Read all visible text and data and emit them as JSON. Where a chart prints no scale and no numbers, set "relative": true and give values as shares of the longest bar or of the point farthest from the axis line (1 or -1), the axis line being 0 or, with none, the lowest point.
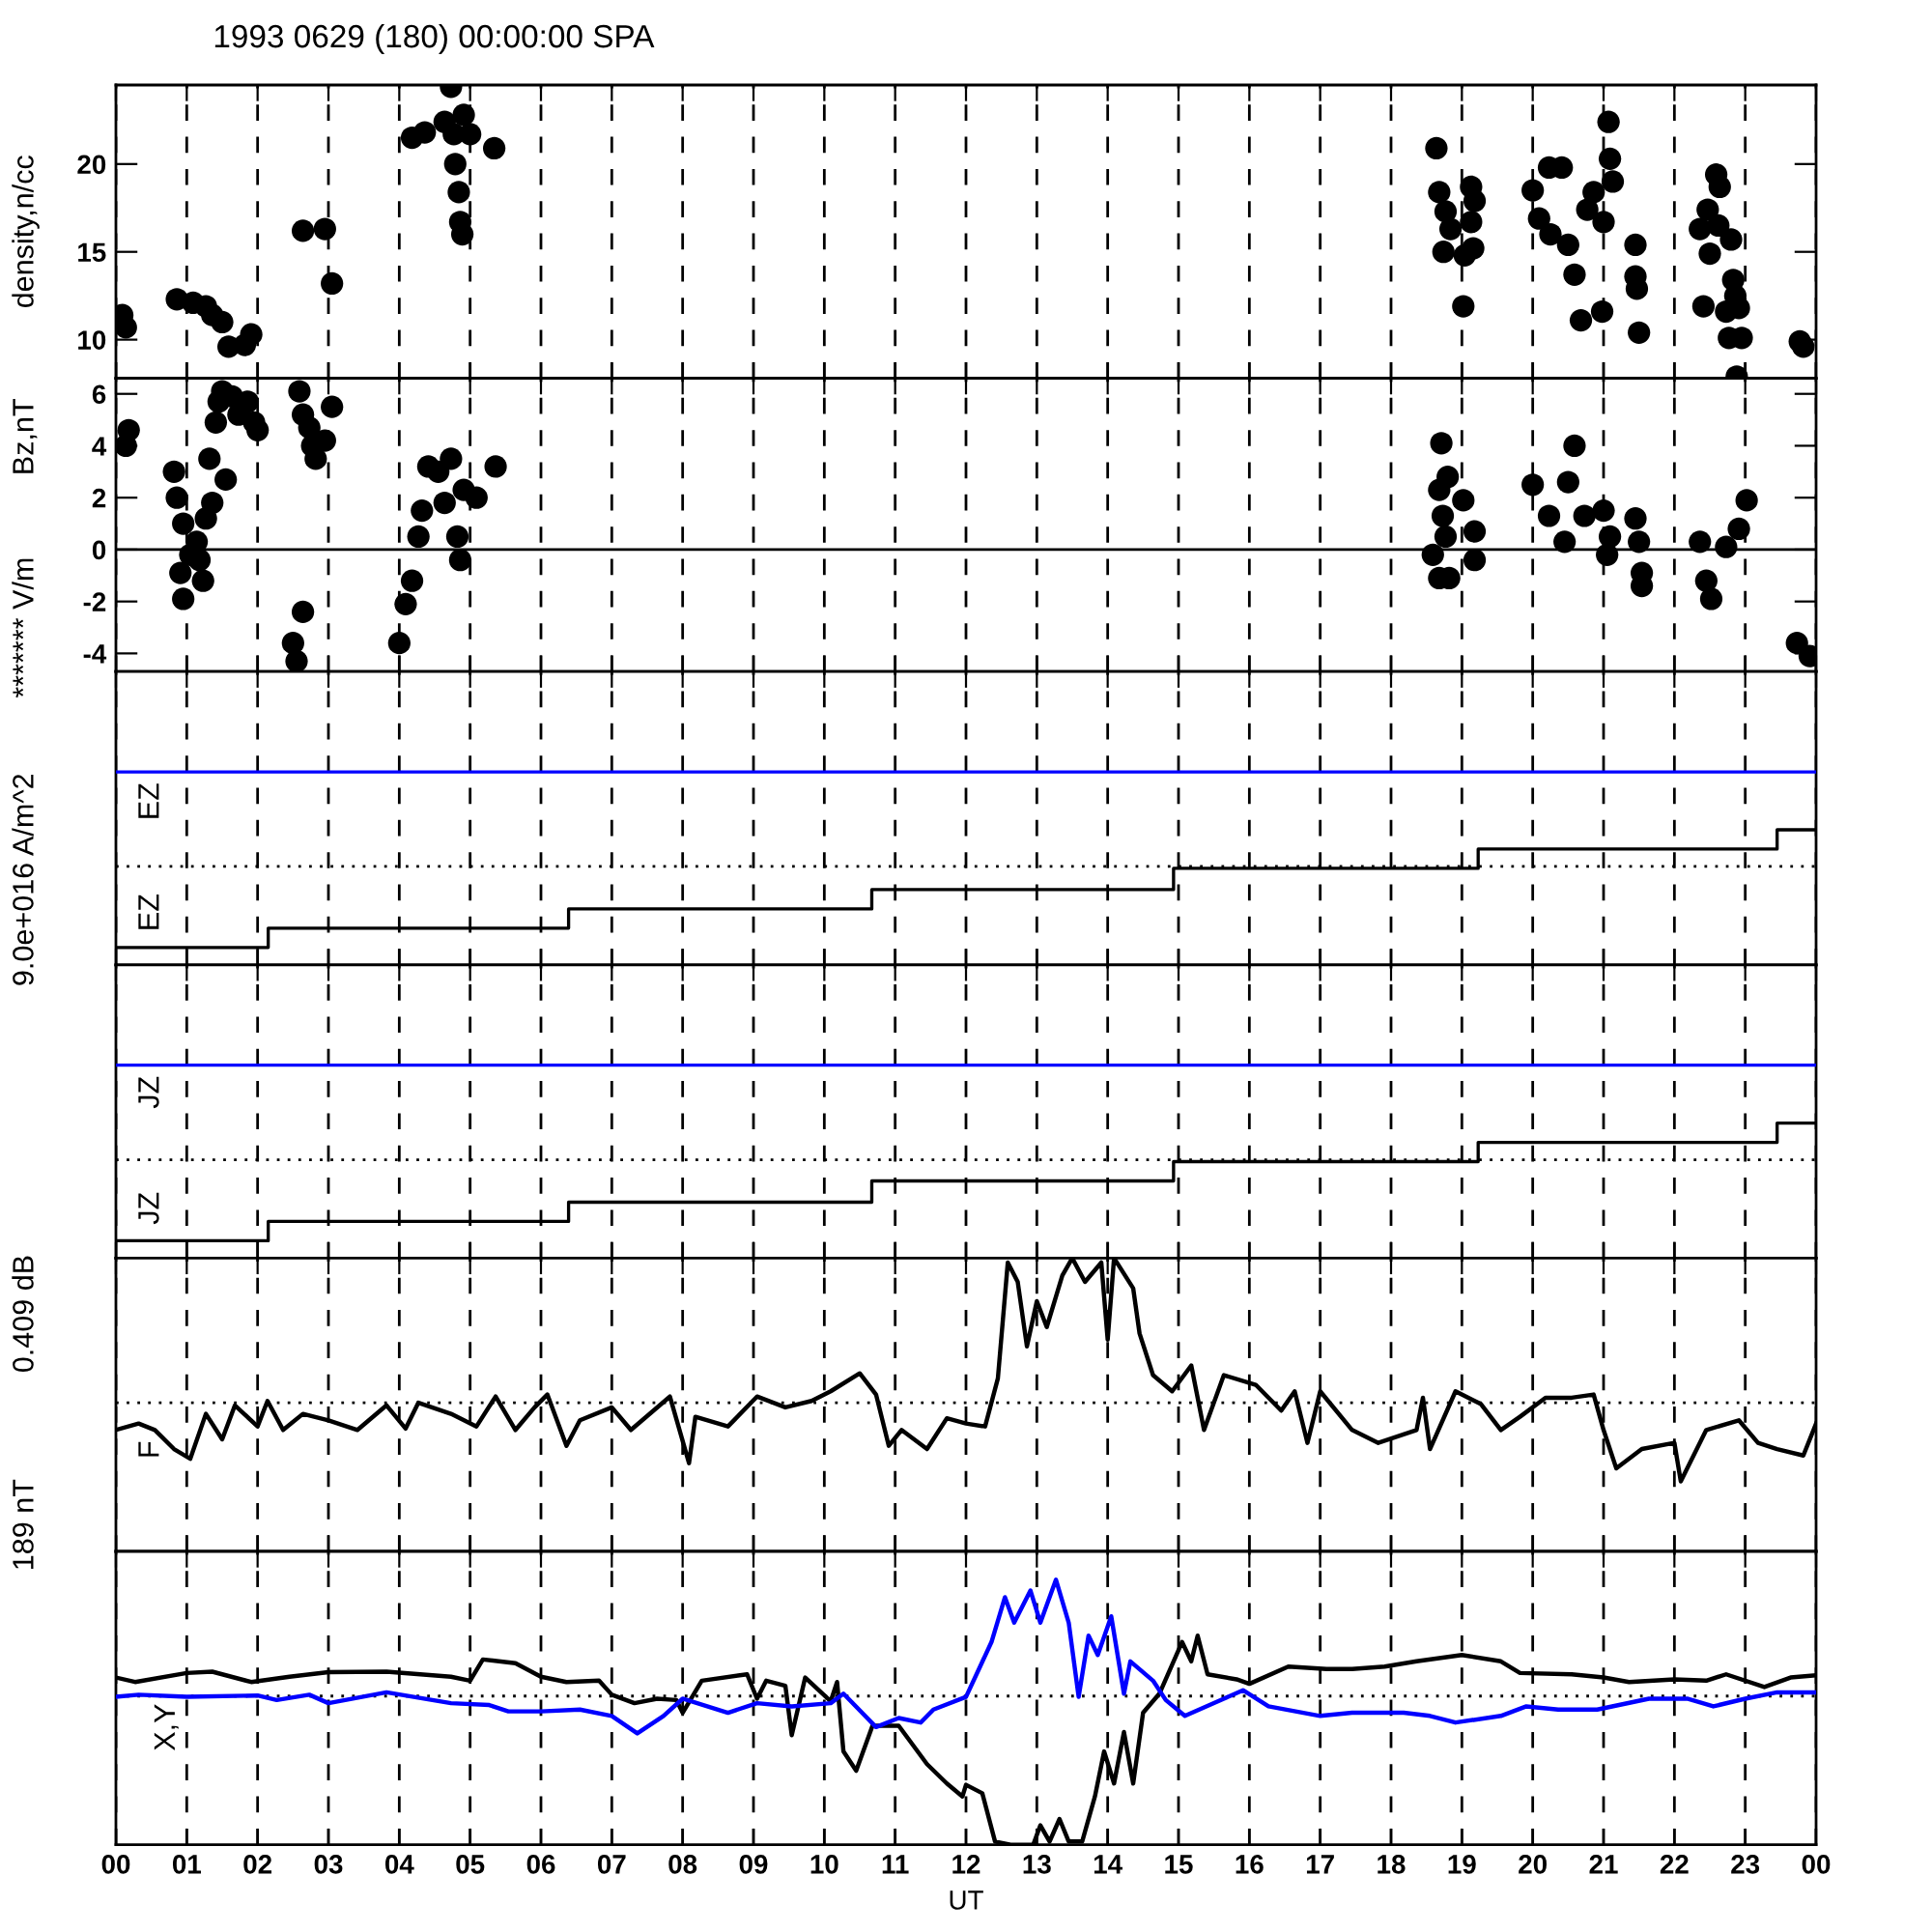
{
  "chart_data": [
    {
      "type": "scatter",
      "title": "1993 0629 (180) 00:00:00 SPA",
      "ylabel": "density,n/cc",
      "xlim": [
        0,
        24
      ],
      "xticks": [
        {
          "value": 0,
          "label": null
        },
        {
          "value": 1,
          "label": null
        },
        {
          "value": 2,
          "label": null
        },
        {
          "value": 3,
          "label": null
        },
        {
          "value": 4,
          "label": null
        },
        {
          "value": 5,
          "label": null
        },
        {
          "value": 6,
          "label": null
        },
        {
          "value": 7,
          "label": null
        },
        {
          "value": 8,
          "label": null
        },
        {
          "value": 9,
          "label": null
        },
        {
          "value": 10,
          "label": null
        },
        {
          "value": 11,
          "label": null
        },
        {
          "value": 12,
          "label": null
        },
        {
          "value": 13,
          "label": null
        },
        {
          "value": 14,
          "label": null
        },
        {
          "value": 15,
          "label": null
        },
        {
          "value": 16,
          "label": null
        },
        {
          "value": 17,
          "label": null
        },
        {
          "value": 18,
          "label": null
        },
        {
          "value": 19,
          "label": null
        },
        {
          "value": 20,
          "label": null
        },
        {
          "value": 21,
          "label": null
        },
        {
          "value": 22,
          "label": null
        },
        {
          "value": 23,
          "label": null
        },
        {
          "value": 24,
          "label": null
        }
      ],
      "ylim": [
        7.8,
        24.5
      ],
      "yticks": [
        10,
        15,
        20
      ],
      "grid": "x",
      "tick_labels": "y",
      "marker": "circle",
      "series": [
        {
          "color": "#000000",
          "x": [
            0.09,
            0.14,
            0.86,
            1.09,
            1.27,
            1.36,
            1.5,
            1.59,
            1.82,
            1.91,
            2.64,
            2.95,
            3.05,
            4.18,
            4.36,
            4.64,
            4.73,
            4.77,
            4.91,
            5.0,
            4.79,
            4.84,
            4.86,
            4.89,
            5.34,
            18.64,
            18.68,
            18.77,
            18.84,
            18.74,
            19.02,
            19.13,
            19.18,
            19.13,
            19.16,
            19.04,
            20.0,
            20.09,
            20.23,
            20.41,
            20.25,
            20.5,
            20.59,
            20.68,
            20.86,
            20.77,
            21.0,
            21.07,
            21.09,
            21.13,
            20.98,
            21.45,
            21.45,
            21.47,
            21.5,
            22.36,
            22.47,
            22.59,
            22.64,
            22.62,
            22.5,
            22.41,
            22.8,
            22.83,
            22.86,
            22.73,
            22.91,
            22.77,
            22.95,
            23.77,
            23.82,
            22.88
          ],
          "values": [
            11.4,
            10.7,
            12.3,
            12.1,
            11.9,
            11.4,
            11.0,
            9.6,
            9.7,
            10.3,
            16.2,
            16.3,
            13.2,
            21.5,
            21.8,
            22.4,
            24.4,
            21.7,
            22.8,
            21.7,
            20.0,
            18.4,
            16.7,
            16.0,
            20.9,
            20.9,
            18.4,
            17.3,
            16.3,
            15.0,
            11.9,
            18.7,
            17.9,
            16.7,
            15.2,
            14.8,
            18.5,
            16.9,
            19.8,
            19.8,
            16.0,
            15.4,
            13.7,
            11.1,
            18.4,
            17.4,
            16.7,
            22.4,
            20.3,
            19.0,
            11.6,
            15.4,
            13.6,
            12.9,
            10.4,
            16.3,
            17.4,
            19.4,
            18.7,
            16.5,
            14.9,
            11.9,
            15.7,
            13.4,
            12.5,
            11.6,
            11.8,
            10.1,
            10.1,
            9.9,
            9.6,
            7.9
          ]
        }
      ]
    },
    {
      "type": "scatter",
      "ylabel": "Bz,nT",
      "xlim": [
        0,
        24
      ],
      "xticks": [
        {
          "value": 0,
          "label": null
        },
        {
          "value": 1,
          "label": null
        },
        {
          "value": 2,
          "label": null
        },
        {
          "value": 3,
          "label": null
        },
        {
          "value": 4,
          "label": null
        },
        {
          "value": 5,
          "label": null
        },
        {
          "value": 6,
          "label": null
        },
        {
          "value": 7,
          "label": null
        },
        {
          "value": 8,
          "label": null
        },
        {
          "value": 9,
          "label": null
        },
        {
          "value": 10,
          "label": null
        },
        {
          "value": 11,
          "label": null
        },
        {
          "value": 12,
          "label": null
        },
        {
          "value": 13,
          "label": null
        },
        {
          "value": 14,
          "label": null
        },
        {
          "value": 15,
          "label": null
        },
        {
          "value": 16,
          "label": null
        },
        {
          "value": 17,
          "label": null
        },
        {
          "value": 18,
          "label": null
        },
        {
          "value": 19,
          "label": null
        },
        {
          "value": 20,
          "label": null
        },
        {
          "value": 21,
          "label": null
        },
        {
          "value": 22,
          "label": null
        },
        {
          "value": 23,
          "label": null
        },
        {
          "value": 24,
          "label": null
        }
      ],
      "ylim": [
        -4.7,
        6.6
      ],
      "yticks": [
        {
          "value": -4,
          "label": "-4"
        },
        {
          "value": -2,
          "label": "-2"
        },
        0,
        2,
        4,
        6
      ],
      "grid": "x",
      "tick_labels": "y",
      "marker": "circle",
      "ref_lines": [
        {
          "axis": "y",
          "value": 0,
          "line_style": "solid",
          "color": "#000000"
        }
      ],
      "series": [
        {
          "color": "#000000",
          "x": [
            0.14,
            0.18,
            0.82,
            0.86,
            0.95,
            0.91,
            0.95,
            1.05,
            1.14,
            1.18,
            1.23,
            1.27,
            1.32,
            1.36,
            1.41,
            1.45,
            1.5,
            1.55,
            1.64,
            1.73,
            1.86,
            1.95,
            2.0,
            2.59,
            2.64,
            2.73,
            2.82,
            2.77,
            2.95,
            3.05,
            2.5,
            2.55,
            2.64,
            4.0,
            4.09,
            4.18,
            4.27,
            4.32,
            4.41,
            4.55,
            4.73,
            4.64,
            4.82,
            4.86,
            4.91,
            5.09,
            5.36,
            18.71,
            18.8,
            18.68,
            19.02,
            18.73,
            18.77,
            18.59,
            18.68,
            18.82,
            19.18,
            19.18,
            20.0,
            20.5,
            20.59,
            20.23,
            20.45,
            20.73,
            21.0,
            21.09,
            21.05,
            21.45,
            21.5,
            21.54,
            21.54,
            22.36,
            22.45,
            22.52,
            22.73,
            22.91,
            23.02,
            23.73,
            23.91
          ],
          "values": [
            4.0,
            4.6,
            3.0,
            2.0,
            1.0,
            -0.9,
            -1.9,
            -0.2,
            0.3,
            -0.4,
            -1.2,
            1.2,
            3.5,
            1.8,
            4.9,
            5.7,
            6.1,
            2.7,
            5.9,
            5.2,
            5.7,
            4.9,
            4.6,
            6.1,
            5.2,
            4.7,
            3.5,
            4.0,
            4.2,
            5.5,
            -3.6,
            -4.3,
            -2.4,
            -3.6,
            -2.1,
            -1.2,
            0.5,
            1.5,
            3.2,
            3.0,
            3.5,
            1.8,
            0.5,
            -0.4,
            2.3,
            2.0,
            3.2,
            4.1,
            2.8,
            2.3,
            1.9,
            1.3,
            0.5,
            -0.2,
            -1.1,
            -1.1,
            0.7,
            -0.4,
            2.5,
            2.6,
            4.0,
            1.3,
            0.3,
            1.3,
            1.5,
            0.5,
            -0.2,
            1.2,
            0.3,
            -0.9,
            -1.4,
            0.3,
            -1.2,
            -1.9,
            0.1,
            0.8,
            1.9,
            -3.6,
            -4.1
          ]
        }
      ]
    },
    {
      "type": "step",
      "ylabel": "******* V/m",
      "relative": true,
      "xlim": [
        0,
        24
      ],
      "xticks": [
        {
          "value": 0,
          "label": null
        },
        {
          "value": 1,
          "label": null
        },
        {
          "value": 2,
          "label": null
        },
        {
          "value": 3,
          "label": null
        },
        {
          "value": 4,
          "label": null
        },
        {
          "value": 5,
          "label": null
        },
        {
          "value": 6,
          "label": null
        },
        {
          "value": 7,
          "label": null
        },
        {
          "value": 8,
          "label": null
        },
        {
          "value": 9,
          "label": null
        },
        {
          "value": 10,
          "label": null
        },
        {
          "value": 11,
          "label": null
        },
        {
          "value": 12,
          "label": null
        },
        {
          "value": 13,
          "label": null
        },
        {
          "value": 14,
          "label": null
        },
        {
          "value": 15,
          "label": null
        },
        {
          "value": 16,
          "label": null
        },
        {
          "value": 17,
          "label": null
        },
        {
          "value": 18,
          "label": null
        },
        {
          "value": 19,
          "label": null
        },
        {
          "value": 20,
          "label": null
        },
        {
          "value": 21,
          "label": null
        },
        {
          "value": 22,
          "label": null
        },
        {
          "value": 23,
          "label": null
        },
        {
          "value": 24,
          "label": null
        }
      ],
      "grid": "x",
      "tick_labels": false,
      "ref_lines": [
        {
          "axis": "y",
          "value": 0.51,
          "line_style": "dotted",
          "color": "#000000"
        }
      ],
      "series": [
        {
          "name": "EZ",
          "color": "#0000ff",
          "x": [
            0,
            24
          ],
          "values": [
            1,
            1
          ]
        },
        {
          "name": "EZ",
          "color": "#000000",
          "x": [
            0,
            2.15,
            6.39,
            10.67,
            14.93,
            19.23,
            23.45,
            24
          ],
          "values": [
            0.09,
            0.19,
            0.29,
            0.39,
            0.5,
            0.6,
            0.7,
            0.7
          ]
        }
      ]
    },
    {
      "type": "step",
      "ylabel": "9.0e+016 A/m^2",
      "relative": true,
      "xlim": [
        0,
        24
      ],
      "xticks": [
        {
          "value": 0,
          "label": null
        },
        {
          "value": 1,
          "label": null
        },
        {
          "value": 2,
          "label": null
        },
        {
          "value": 3,
          "label": null
        },
        {
          "value": 4,
          "label": null
        },
        {
          "value": 5,
          "label": null
        },
        {
          "value": 6,
          "label": null
        },
        {
          "value": 7,
          "label": null
        },
        {
          "value": 8,
          "label": null
        },
        {
          "value": 9,
          "label": null
        },
        {
          "value": 10,
          "label": null
        },
        {
          "value": 11,
          "label": null
        },
        {
          "value": 12,
          "label": null
        },
        {
          "value": 13,
          "label": null
        },
        {
          "value": 14,
          "label": null
        },
        {
          "value": 15,
          "label": null
        },
        {
          "value": 16,
          "label": null
        },
        {
          "value": 17,
          "label": null
        },
        {
          "value": 18,
          "label": null
        },
        {
          "value": 19,
          "label": null
        },
        {
          "value": 20,
          "label": null
        },
        {
          "value": 21,
          "label": null
        },
        {
          "value": 22,
          "label": null
        },
        {
          "value": 23,
          "label": null
        },
        {
          "value": 24,
          "label": null
        }
      ],
      "grid": "x",
      "tick_labels": false,
      "ref_lines": [
        {
          "axis": "y",
          "value": 0.51,
          "line_style": "dotted",
          "color": "#000000"
        }
      ],
      "series": [
        {
          "name": "JZ",
          "color": "#0000ff",
          "x": [
            0,
            24
          ],
          "values": [
            1,
            1
          ]
        },
        {
          "name": "JZ",
          "color": "#000000",
          "x": [
            0,
            2.15,
            6.39,
            10.67,
            14.93,
            19.23,
            23.45,
            24
          ],
          "values": [
            0.09,
            0.19,
            0.29,
            0.4,
            0.5,
            0.6,
            0.7,
            0.7
          ]
        }
      ]
    },
    {
      "type": "line",
      "ylabel": "0.409 dB",
      "relative": true,
      "xlim": [
        0,
        24
      ],
      "xticks": [
        {
          "value": 0,
          "label": null
        },
        {
          "value": 1,
          "label": null
        },
        {
          "value": 2,
          "label": null
        },
        {
          "value": 3,
          "label": null
        },
        {
          "value": 4,
          "label": null
        },
        {
          "value": 5,
          "label": null
        },
        {
          "value": 6,
          "label": null
        },
        {
          "value": 7,
          "label": null
        },
        {
          "value": 8,
          "label": null
        },
        {
          "value": 9,
          "label": null
        },
        {
          "value": 10,
          "label": null
        },
        {
          "value": 11,
          "label": null
        },
        {
          "value": 12,
          "label": null
        },
        {
          "value": 13,
          "label": null
        },
        {
          "value": 14,
          "label": null
        },
        {
          "value": 15,
          "label": null
        },
        {
          "value": 16,
          "label": null
        },
        {
          "value": 17,
          "label": null
        },
        {
          "value": 18,
          "label": null
        },
        {
          "value": 19,
          "label": null
        },
        {
          "value": 20,
          "label": null
        },
        {
          "value": 21,
          "label": null
        },
        {
          "value": 22,
          "label": null
        },
        {
          "value": 23,
          "label": null
        },
        {
          "value": 24,
          "label": null
        }
      ],
      "grid": "x",
      "tick_labels": false,
      "ref_lines": [
        {
          "axis": "y",
          "value": 0.507,
          "line_style": "dotted",
          "color": "#000000"
        }
      ],
      "series": [
        {
          "name": "F",
          "color": "#000000",
          "x": [
            0,
            0.32,
            0.55,
            0.82,
            1.05,
            1.27,
            1.5,
            1.68,
            2.0,
            2.14,
            2.36,
            2.64,
            3.0,
            3.41,
            3.82,
            4.09,
            4.27,
            4.73,
            5.09,
            5.36,
            5.64,
            5.91,
            6.09,
            6.36,
            6.55,
            7.0,
            7.27,
            7.82,
            8.09,
            8.18,
            8.64,
            9.05,
            9.45,
            9.82,
            10.09,
            10.5,
            10.73,
            10.91,
            11.09,
            11.45,
            11.73,
            12.0,
            12.27,
            12.45,
            12.59,
            12.73,
            12.86,
            13.0,
            13.14,
            13.36,
            13.5,
            13.68,
            13.91,
            14.0,
            14.09,
            14.36,
            14.45,
            14.64,
            14.91,
            15.18,
            15.36,
            15.64,
            16.09,
            16.45,
            16.64,
            16.82,
            17.0,
            17.45,
            17.82,
            18.36,
            18.45,
            18.55,
            18.91,
            19.27,
            19.55,
            19.82,
            20.18,
            20.55,
            20.86,
            21.0,
            21.18,
            21.54,
            22.0,
            22.09,
            22.45,
            22.91,
            23.18,
            23.45,
            23.82,
            24.0
          ],
          "values": [
            0.414,
            0.436,
            0.414,
            0.349,
            0.316,
            0.469,
            0.382,
            0.498,
            0.426,
            0.513,
            0.414,
            0.469,
            0.447,
            0.414,
            0.498,
            0.419,
            0.507,
            0.469,
            0.426,
            0.528,
            0.414,
            0.491,
            0.535,
            0.36,
            0.447,
            0.491,
            0.414,
            0.528,
            0.301,
            0.459,
            0.426,
            0.528,
            0.491,
            0.513,
            0.546,
            0.607,
            0.535,
            0.36,
            0.414,
            0.349,
            0.454,
            0.436,
            0.426,
            0.59,
            0.985,
            0.919,
            0.699,
            0.853,
            0.765,
            0.941,
            1.0,
            0.919,
            0.985,
            0.722,
            1.0,
            0.897,
            0.743,
            0.601,
            0.546,
            0.634,
            0.414,
            0.601,
            0.568,
            0.48,
            0.546,
            0.37,
            0.546,
            0.414,
            0.37,
            0.414,
            0.524,
            0.349,
            0.546,
            0.502,
            0.414,
            0.459,
            0.524,
            0.524,
            0.535,
            0.414,
            0.283,
            0.349,
            0.37,
            0.239,
            0.414,
            0.447,
            0.37,
            0.349,
            0.327,
            0.436
          ]
        }
      ]
    },
    {
      "type": "line",
      "ylabel": "189 nT",
      "xlabel": "UT",
      "relative": true,
      "xlim": [
        0,
        24
      ],
      "xticks": [
        {
          "value": 0,
          "label": "00"
        },
        {
          "value": 1,
          "label": "01"
        },
        {
          "value": 2,
          "label": "02"
        },
        {
          "value": 3,
          "label": "03"
        },
        {
          "value": 4,
          "label": "04"
        },
        {
          "value": 5,
          "label": "05"
        },
        {
          "value": 6,
          "label": "06"
        },
        {
          "value": 7,
          "label": "07"
        },
        {
          "value": 8,
          "label": "08"
        },
        {
          "value": 9,
          "label": "09"
        },
        {
          "value": 10,
          "label": "10"
        },
        {
          "value": 11,
          "label": "11"
        },
        {
          "value": 12,
          "label": "12"
        },
        {
          "value": 13,
          "label": "13"
        },
        {
          "value": 14,
          "label": "14"
        },
        {
          "value": 15,
          "label": "15"
        },
        {
          "value": 16,
          "label": "16"
        },
        {
          "value": 17,
          "label": "17"
        },
        {
          "value": 18,
          "label": "18"
        },
        {
          "value": 19,
          "label": "19"
        },
        {
          "value": 20,
          "label": "20"
        },
        {
          "value": 21,
          "label": "21"
        },
        {
          "value": 22,
          "label": "22"
        },
        {
          "value": 23,
          "label": "23"
        },
        {
          "value": 24,
          "label": "00"
        }
      ],
      "grid": "x",
      "tick_labels": "x",
      "annotations": [
        "X,Y"
      ],
      "ref_lines": [
        {
          "axis": "y",
          "value": 0.561,
          "line_style": "dotted",
          "color": "#000000"
        }
      ],
      "series": [
        {
          "color": "#000000",
          "x": [
            0,
            0.27,
            1.0,
            1.36,
            1.91,
            2.45,
            3.0,
            3.82,
            4.73,
            5.0,
            5.18,
            5.64,
            6.0,
            6.36,
            6.82,
            7.0,
            7.32,
            7.64,
            7.91,
            8.0,
            8.27,
            8.91,
            9.05,
            9.18,
            9.45,
            9.54,
            9.73,
            10.09,
            10.18,
            10.27,
            10.45,
            10.68,
            11.05,
            11.45,
            11.73,
            11.95,
            12.0,
            12.23,
            12.41,
            12.63,
            12.95,
            13.05,
            13.18,
            13.32,
            13.45,
            13.64,
            13.82,
            13.95,
            14.09,
            14.23,
            14.36,
            14.5,
            14.73,
            15.05,
            15.18,
            15.27,
            15.41,
            15.82,
            16.0,
            16.55,
            17.09,
            17.45,
            17.91,
            18.36,
            19.0,
            19.55,
            19.82,
            20.55,
            21.0,
            21.36,
            22.0,
            22.45,
            22.73,
            23.27,
            23.64,
            24.0
          ],
          "values": [
            0.631,
            0.614,
            0.648,
            0.653,
            0.614,
            0.634,
            0.651,
            0.653,
            0.634,
            0.619,
            0.699,
            0.685,
            0.634,
            0.614,
            0.619,
            0.566,
            0.534,
            0.551,
            0.546,
            0.498,
            0.619,
            0.643,
            0.551,
            0.619,
            0.6,
            0.413,
            0.631,
            0.541,
            0.614,
            0.352,
            0.279,
            0.449,
            0.449,
            0.304,
            0.231,
            0.182,
            0.226,
            0.194,
            0.012,
            0,
            0,
            0.073,
            0.012,
            0.097,
            0.012,
            0.012,
            0.182,
            0.352,
            0.231,
            0.425,
            0.231,
            0.498,
            0.57,
            0.765,
            0.692,
            0.789,
            0.643,
            0.624,
            0.607,
            0.672,
            0.663,
            0.663,
            0.672,
            0.692,
            0.716,
            0.692,
            0.648,
            0.643,
            0.631,
            0.614,
            0.624,
            0.619,
            0.643,
            0.595,
            0.631,
            0.639
          ]
        },
        {
          "color": "#0000ff",
          "x": [
            0,
            0.32,
            1.0,
            2.0,
            2.27,
            2.73,
            3.0,
            3.82,
            4.73,
            5.27,
            5.54,
            6.0,
            6.55,
            7.0,
            7.36,
            7.73,
            8.0,
            8.64,
            9.05,
            9.54,
            10.09,
            10.27,
            10.73,
            11.05,
            11.36,
            11.54,
            12.0,
            12.36,
            12.55,
            12.68,
            12.91,
            13.05,
            13.27,
            13.45,
            13.59,
            13.73,
            13.86,
            14.05,
            14.23,
            14.32,
            14.64,
            14.82,
            15.09,
            15.64,
            15.91,
            16.27,
            17.0,
            17.45,
            18.18,
            18.55,
            18.91,
            19.55,
            19.91,
            20.36,
            20.91,
            21.64,
            22.18,
            22.55,
            23.0,
            23.45,
            24.0
          ],
          "values": [
            0.558,
            0.566,
            0.558,
            0.563,
            0.546,
            0.566,
            0.534,
            0.575,
            0.534,
            0.527,
            0.503,
            0.503,
            0.51,
            0.486,
            0.42,
            0.486,
            0.551,
            0.498,
            0.534,
            0.522,
            0.534,
            0.57,
            0.444,
            0.478,
            0.461,
            0.51,
            0.558,
            0.765,
            0.934,
            0.838,
            0.959,
            0.838,
            1.0,
            0.838,
            0.558,
            0.789,
            0.716,
            0.862,
            0.57,
            0.692,
            0.619,
            0.546,
            0.486,
            0.551,
            0.583,
            0.522,
            0.486,
            0.498,
            0.498,
            0.486,
            0.461,
            0.486,
            0.522,
            0.51,
            0.51,
            0.551,
            0.551,
            0.522,
            0.551,
            0.575,
            0.575
          ]
        }
      ]
    }
  ]
}
